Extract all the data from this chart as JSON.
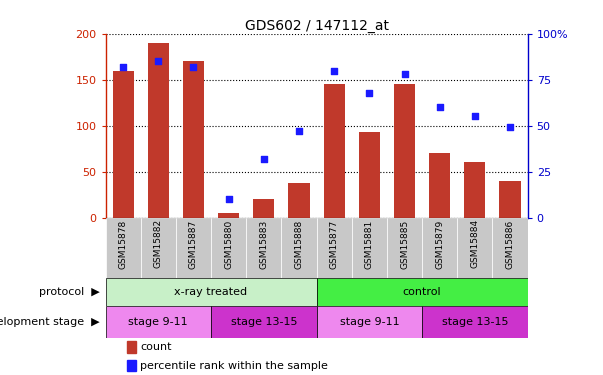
{
  "title": "GDS602 / 147112_at",
  "categories": [
    "GSM15878",
    "GSM15882",
    "GSM15887",
    "GSM15880",
    "GSM15883",
    "GSM15888",
    "GSM15877",
    "GSM15881",
    "GSM15885",
    "GSM15879",
    "GSM15884",
    "GSM15886"
  ],
  "counts": [
    160,
    190,
    170,
    5,
    20,
    38,
    145,
    93,
    145,
    70,
    60,
    40
  ],
  "percentiles": [
    82,
    85,
    82,
    10,
    32,
    47,
    80,
    68,
    78,
    60,
    55,
    49
  ],
  "bar_color": "#c0392b",
  "dot_color": "#1a1aff",
  "ylim_left": [
    0,
    200
  ],
  "ylim_right": [
    0,
    100
  ],
  "yticks_left": [
    0,
    50,
    100,
    150,
    200
  ],
  "yticks_right": [
    0,
    25,
    50,
    75,
    100
  ],
  "yticklabels_right": [
    "0",
    "25",
    "50",
    "75",
    "100%"
  ],
  "protocol_groups": [
    {
      "label": "x-ray treated",
      "start": 0,
      "end": 6,
      "color": "#c8f0c8"
    },
    {
      "label": "control",
      "start": 6,
      "end": 12,
      "color": "#44ee44"
    }
  ],
  "stage_groups": [
    {
      "label": "stage 9-11",
      "start": 0,
      "end": 3,
      "color": "#ee88ee"
    },
    {
      "label": "stage 13-15",
      "start": 3,
      "end": 6,
      "color": "#cc33cc"
    },
    {
      "label": "stage 9-11",
      "start": 6,
      "end": 9,
      "color": "#ee88ee"
    },
    {
      "label": "stage 13-15",
      "start": 9,
      "end": 12,
      "color": "#cc33cc"
    }
  ],
  "legend_count_label": "count",
  "legend_percentile_label": "percentile rank within the sample",
  "protocol_label": "protocol",
  "stage_label": "development stage",
  "tick_bg_color": "#c8c8c8",
  "axis_color_left": "#cc2200",
  "axis_color_right": "#0000cc"
}
